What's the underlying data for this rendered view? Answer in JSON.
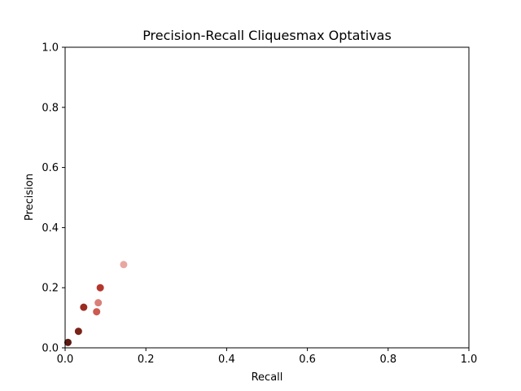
{
  "chart_data": {
    "type": "scatter",
    "title": "Precision-Recall Cliquesmax Optativas",
    "xlabel": "Recall",
    "ylabel": "Precision",
    "xlim": [
      0.0,
      1.0
    ],
    "ylim": [
      0.0,
      1.0
    ],
    "xticks": [
      "0.0",
      "0.2",
      "0.4",
      "0.6",
      "0.8",
      "1.0"
    ],
    "yticks": [
      "0.0",
      "0.2",
      "0.4",
      "0.6",
      "0.8",
      "1.0"
    ],
    "grid": false,
    "points": [
      {
        "x": 0.007,
        "y": 0.018,
        "color": "#5b1a12"
      },
      {
        "x": 0.033,
        "y": 0.055,
        "color": "#7a2318"
      },
      {
        "x": 0.046,
        "y": 0.135,
        "color": "#9a2c22"
      },
      {
        "x": 0.087,
        "y": 0.2,
        "color": "#b5362c"
      },
      {
        "x": 0.078,
        "y": 0.12,
        "color": "#cc5a50"
      },
      {
        "x": 0.082,
        "y": 0.15,
        "color": "#d98078"
      },
      {
        "x": 0.145,
        "y": 0.277,
        "color": "#e8a8a2"
      }
    ]
  }
}
